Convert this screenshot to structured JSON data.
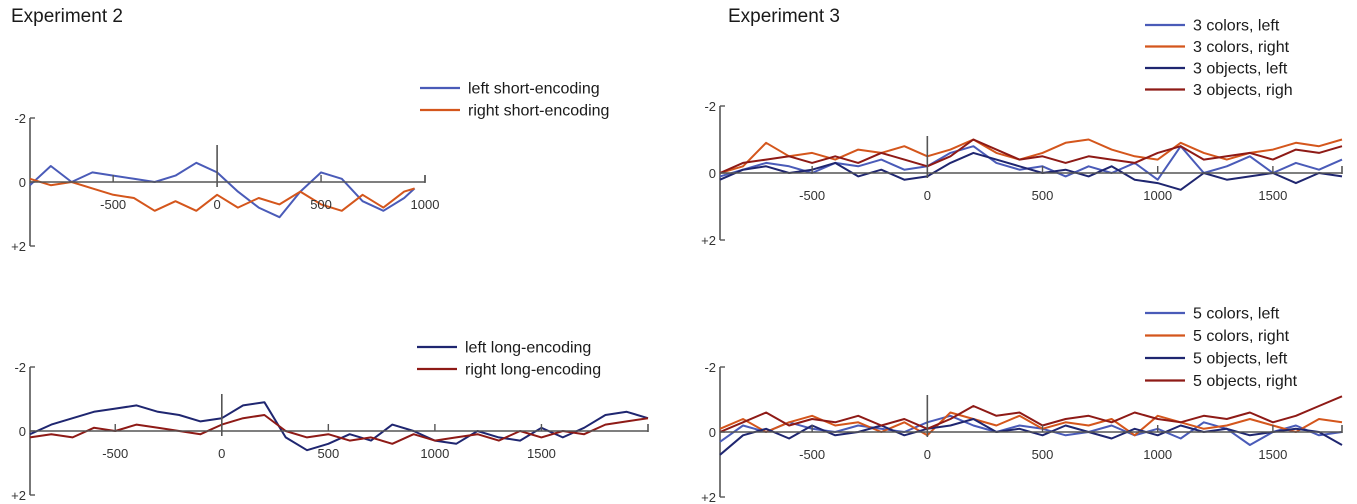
{
  "titles": {
    "exp2": "Experiment 2",
    "exp3": "Experiment 3"
  },
  "colors": {
    "blue": "#4a5bb8",
    "orange": "#d4561c",
    "navy": "#1f2670",
    "darkred": "#8e1a16",
    "axis": "#555555"
  },
  "chart_data": [
    {
      "id": "exp2-short",
      "type": "line",
      "xlim": [
        -900,
        1000
      ],
      "ylim": [
        -2,
        2
      ],
      "yaxis_inverted": true,
      "xticks": [
        -500,
        0,
        500,
        1000
      ],
      "xtick_labels": [
        "-500",
        "0",
        "500",
        "1000"
      ],
      "ytick_labels": [
        "-2",
        "0",
        "+2"
      ],
      "legend_position": "top-right",
      "series": [
        {
          "name": "left short-encoding",
          "color": "#4a5bb8",
          "x": [
            -900,
            -800,
            -700,
            -600,
            -500,
            -400,
            -300,
            -200,
            -100,
            0,
            100,
            200,
            300,
            400,
            500,
            600,
            700,
            800,
            900,
            950
          ],
          "y": [
            0.1,
            -0.5,
            0.0,
            -0.3,
            -0.2,
            -0.1,
            0.0,
            -0.2,
            -0.6,
            -0.3,
            0.3,
            0.8,
            1.1,
            0.3,
            -0.3,
            -0.1,
            0.6,
            0.9,
            0.5,
            0.2
          ]
        },
        {
          "name": "right short-encoding",
          "color": "#d4561c",
          "x": [
            -900,
            -800,
            -700,
            -600,
            -500,
            -400,
            -300,
            -200,
            -100,
            0,
            100,
            200,
            300,
            400,
            500,
            600,
            700,
            800,
            900,
            950
          ],
          "y": [
            -0.1,
            0.1,
            0.0,
            0.2,
            0.4,
            0.5,
            0.9,
            0.6,
            0.9,
            0.4,
            0.8,
            0.5,
            0.7,
            0.3,
            0.7,
            0.9,
            0.4,
            0.8,
            0.3,
            0.2
          ]
        }
      ]
    },
    {
      "id": "exp2-long",
      "type": "line",
      "xlim": [
        -900,
        2000
      ],
      "ylim": [
        -2,
        2
      ],
      "yaxis_inverted": true,
      "xticks": [
        -500,
        0,
        500,
        1000,
        1500
      ],
      "xtick_labels": [
        "-500",
        "0",
        "500",
        "1000",
        "1500"
      ],
      "ytick_labels": [
        "-2",
        "0",
        "+2"
      ],
      "legend_position": "top-right",
      "series": [
        {
          "name": "left long-encoding",
          "color": "#1f2670",
          "x": [
            -900,
            -800,
            -700,
            -600,
            -500,
            -400,
            -300,
            -200,
            -100,
            0,
            100,
            200,
            300,
            400,
            500,
            600,
            700,
            800,
            900,
            1000,
            1100,
            1200,
            1300,
            1400,
            1500,
            1600,
            1700,
            1800,
            1900,
            2000
          ],
          "y": [
            0.1,
            -0.2,
            -0.4,
            -0.6,
            -0.7,
            -0.8,
            -0.6,
            -0.5,
            -0.3,
            -0.4,
            -0.8,
            -0.9,
            0.2,
            0.6,
            0.4,
            0.1,
            0.3,
            -0.2,
            0.0,
            0.3,
            0.4,
            0.0,
            0.2,
            0.3,
            -0.1,
            0.2,
            -0.1,
            -0.5,
            -0.6,
            -0.4
          ]
        },
        {
          "name": "right long-encoding",
          "color": "#8e1a16",
          "x": [
            -900,
            -800,
            -700,
            -600,
            -500,
            -400,
            -300,
            -200,
            -100,
            0,
            100,
            200,
            300,
            400,
            500,
            600,
            700,
            800,
            900,
            1000,
            1100,
            1200,
            1300,
            1400,
            1500,
            1600,
            1700,
            1800,
            1900,
            2000
          ],
          "y": [
            0.2,
            0.1,
            0.2,
            -0.1,
            0.0,
            -0.2,
            -0.1,
            0.0,
            0.1,
            -0.2,
            -0.4,
            -0.5,
            0.0,
            0.2,
            0.1,
            0.3,
            0.2,
            0.4,
            0.1,
            0.3,
            0.2,
            0.1,
            0.3,
            0.0,
            0.2,
            0.0,
            0.1,
            -0.2,
            -0.3,
            -0.4
          ]
        }
      ]
    },
    {
      "id": "exp3-three",
      "type": "line",
      "xlim": [
        -900,
        1800
      ],
      "ylim": [
        -2,
        2
      ],
      "yaxis_inverted": true,
      "xticks": [
        -500,
        0,
        500,
        1000,
        1500
      ],
      "xtick_labels": [
        "-500",
        "0",
        "500",
        "1000",
        "1500"
      ],
      "ytick_labels": [
        "-2",
        "0",
        "+2"
      ],
      "legend_position": "top-right",
      "series": [
        {
          "name": "3 colors, left",
          "color": "#4a5bb8",
          "x": [
            -900,
            -800,
            -700,
            -600,
            -500,
            -400,
            -300,
            -200,
            -100,
            0,
            100,
            200,
            300,
            400,
            500,
            600,
            700,
            800,
            900,
            1000,
            1100,
            1200,
            1300,
            1400,
            1500,
            1600,
            1700,
            1800
          ],
          "y": [
            0.1,
            -0.1,
            -0.3,
            -0.2,
            0.0,
            -0.3,
            -0.2,
            -0.4,
            -0.1,
            -0.2,
            -0.6,
            -0.8,
            -0.3,
            -0.1,
            -0.2,
            0.1,
            -0.2,
            0.0,
            -0.3,
            0.2,
            -0.8,
            0.0,
            -0.2,
            -0.5,
            0.0,
            -0.3,
            -0.1,
            -0.4
          ]
        },
        {
          "name": "3 colors, right",
          "color": "#d4561c",
          "x": [
            -900,
            -800,
            -700,
            -600,
            -500,
            -400,
            -300,
            -200,
            -100,
            0,
            100,
            200,
            300,
            400,
            500,
            600,
            700,
            800,
            900,
            1000,
            1100,
            1200,
            1300,
            1400,
            1500,
            1600,
            1700,
            1800
          ],
          "y": [
            0.0,
            -0.2,
            -0.9,
            -0.5,
            -0.6,
            -0.4,
            -0.7,
            -0.6,
            -0.8,
            -0.5,
            -0.7,
            -1.0,
            -0.6,
            -0.4,
            -0.6,
            -0.9,
            -1.0,
            -0.7,
            -0.5,
            -0.4,
            -0.9,
            -0.6,
            -0.4,
            -0.6,
            -0.7,
            -0.9,
            -0.8,
            -1.0
          ]
        },
        {
          "name": "3 objects, left",
          "color": "#1f2670",
          "x": [
            -900,
            -800,
            -700,
            -600,
            -500,
            -400,
            -300,
            -200,
            -100,
            0,
            100,
            200,
            300,
            400,
            500,
            600,
            700,
            800,
            900,
            1000,
            1100,
            1200,
            1300,
            1400,
            1500,
            1600,
            1700,
            1800
          ],
          "y": [
            0.2,
            -0.1,
            -0.2,
            0.0,
            -0.1,
            -0.3,
            0.1,
            -0.1,
            0.2,
            0.1,
            -0.3,
            -0.6,
            -0.4,
            -0.2,
            0.0,
            -0.1,
            0.1,
            -0.2,
            0.2,
            0.3,
            0.5,
            0.0,
            0.2,
            0.1,
            0.0,
            0.3,
            0.0,
            0.1
          ]
        },
        {
          "name": "3 objects, righ",
          "color": "#8e1a16",
          "x": [
            -900,
            -800,
            -700,
            -600,
            -500,
            -400,
            -300,
            -200,
            -100,
            0,
            100,
            200,
            300,
            400,
            500,
            600,
            700,
            800,
            900,
            1000,
            1100,
            1200,
            1300,
            1400,
            1500,
            1600,
            1700,
            1800
          ],
          "y": [
            0.0,
            -0.3,
            -0.4,
            -0.5,
            -0.3,
            -0.5,
            -0.3,
            -0.6,
            -0.4,
            -0.2,
            -0.5,
            -1.0,
            -0.7,
            -0.4,
            -0.5,
            -0.3,
            -0.5,
            -0.4,
            -0.3,
            -0.6,
            -0.8,
            -0.4,
            -0.5,
            -0.6,
            -0.4,
            -0.7,
            -0.6,
            -0.8
          ]
        }
      ]
    },
    {
      "id": "exp3-five",
      "type": "line",
      "xlim": [
        -900,
        1800
      ],
      "ylim": [
        -2,
        2
      ],
      "yaxis_inverted": true,
      "xticks": [
        -500,
        0,
        500,
        1000,
        1500
      ],
      "xtick_labels": [
        "-500",
        "0",
        "500",
        "1000",
        "1500"
      ],
      "ytick_labels": [
        "-2",
        "0",
        "+2"
      ],
      "legend_position": "top-right",
      "series": [
        {
          "name": "5 colors, left",
          "color": "#4a5bb8",
          "x": [
            -900,
            -800,
            -700,
            -600,
            -500,
            -400,
            -300,
            -200,
            -100,
            0,
            100,
            200,
            300,
            400,
            500,
            600,
            700,
            800,
            900,
            1000,
            1100,
            1200,
            1300,
            1400,
            1500,
            1600,
            1700,
            1800
          ],
          "y": [
            0.3,
            -0.2,
            0.0,
            -0.3,
            -0.1,
            0.0,
            -0.2,
            -0.1,
            0.0,
            -0.3,
            -0.5,
            -0.2,
            0.0,
            -0.2,
            -0.1,
            0.1,
            0.0,
            -0.2,
            0.1,
            -0.1,
            0.2,
            -0.3,
            -0.1,
            0.4,
            0.0,
            -0.2,
            0.1,
            0.0
          ]
        },
        {
          "name": "5 colors, right",
          "color": "#d4561c",
          "x": [
            -900,
            -800,
            -700,
            -600,
            -500,
            -400,
            -300,
            -200,
            -100,
            0,
            100,
            200,
            300,
            400,
            500,
            600,
            700,
            800,
            900,
            1000,
            1100,
            1200,
            1300,
            1400,
            1500,
            1600,
            1700,
            1800
          ],
          "y": [
            -0.1,
            -0.4,
            0.0,
            -0.3,
            -0.5,
            -0.2,
            -0.3,
            0.0,
            -0.3,
            0.1,
            -0.6,
            -0.4,
            -0.2,
            -0.5,
            -0.1,
            -0.3,
            -0.2,
            -0.4,
            0.1,
            -0.5,
            -0.3,
            -0.1,
            -0.2,
            -0.4,
            -0.2,
            0.0,
            -0.4,
            -0.3
          ]
        },
        {
          "name": "5 objects, left",
          "color": "#1f2670",
          "x": [
            -900,
            -800,
            -700,
            -600,
            -500,
            -400,
            -300,
            -200,
            -100,
            0,
            100,
            200,
            300,
            400,
            500,
            600,
            700,
            800,
            900,
            1000,
            1100,
            1200,
            1300,
            1400,
            1500,
            1600,
            1700,
            1800
          ],
          "y": [
            0.7,
            0.1,
            -0.1,
            0.2,
            -0.2,
            0.1,
            0.0,
            -0.2,
            0.1,
            -0.1,
            -0.2,
            -0.4,
            0.0,
            -0.1,
            0.1,
            -0.2,
            0.0,
            0.2,
            -0.1,
            0.1,
            -0.2,
            0.0,
            -0.1,
            0.1,
            0.0,
            -0.1,
            0.0,
            0.4
          ]
        },
        {
          "name": "5 objects, right",
          "color": "#8e1a16",
          "x": [
            -900,
            -800,
            -700,
            -600,
            -500,
            -400,
            -300,
            -200,
            -100,
            0,
            100,
            200,
            300,
            400,
            500,
            600,
            700,
            800,
            900,
            1000,
            1100,
            1200,
            1300,
            1400,
            1500,
            1600,
            1700,
            1800
          ],
          "y": [
            0.0,
            -0.3,
            -0.6,
            -0.2,
            -0.4,
            -0.3,
            -0.5,
            -0.2,
            -0.4,
            -0.1,
            -0.4,
            -0.8,
            -0.5,
            -0.6,
            -0.2,
            -0.4,
            -0.5,
            -0.3,
            -0.6,
            -0.4,
            -0.3,
            -0.5,
            -0.4,
            -0.6,
            -0.3,
            -0.5,
            -0.8,
            -1.1
          ]
        }
      ]
    }
  ]
}
